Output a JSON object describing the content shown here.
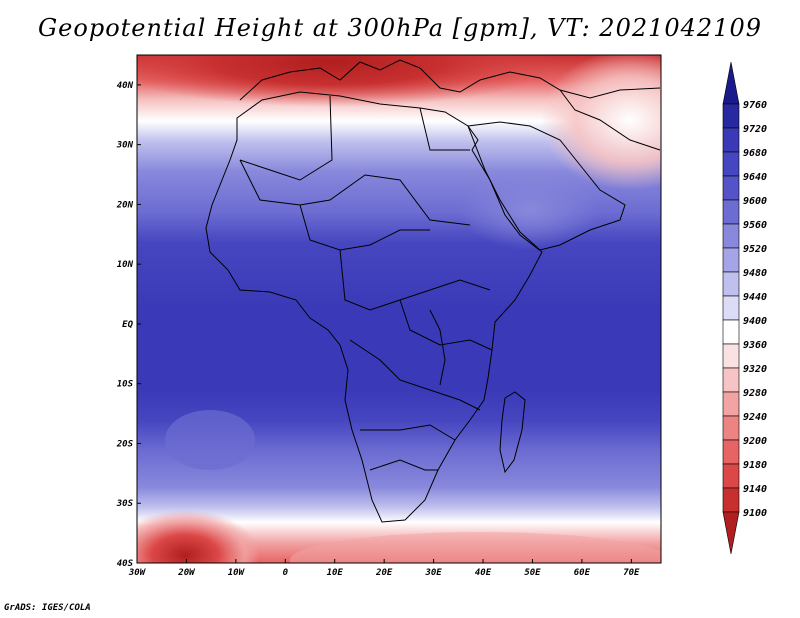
{
  "title": "Geopotential Height at 300hPa [gpm], VT: 2021042109",
  "credit": "GrADS: IGES/COLA",
  "map": {
    "lon_range": [
      -30,
      76
    ],
    "lat_range": [
      -40,
      45
    ],
    "x_tick_labels": [
      {
        "lon": -30,
        "label": "30W"
      },
      {
        "lon": -20,
        "label": "20W"
      },
      {
        "lon": -10,
        "label": "10W"
      },
      {
        "lon": 0,
        "label": "0"
      },
      {
        "lon": 10,
        "label": "10E"
      },
      {
        "lon": 20,
        "label": "20E"
      },
      {
        "lon": 30,
        "label": "30E"
      },
      {
        "lon": 40,
        "label": "40E"
      },
      {
        "lon": 50,
        "label": "50E"
      },
      {
        "lon": 60,
        "label": "60E"
      },
      {
        "lon": 70,
        "label": "70E"
      }
    ],
    "y_tick_labels": [
      {
        "lat": 40,
        "label": "40N"
      },
      {
        "lat": 30,
        "label": "30N"
      },
      {
        "lat": 20,
        "label": "20N"
      },
      {
        "lat": 10,
        "label": "10N"
      },
      {
        "lat": 0,
        "label": "EQ"
      },
      {
        "lat": -10,
        "label": "10S"
      },
      {
        "lat": -20,
        "label": "20S"
      },
      {
        "lat": -30,
        "label": "30S"
      },
      {
        "lat": -40,
        "label": "40S"
      }
    ]
  },
  "colorbar": {
    "levels": [
      9100,
      9140,
      9180,
      9200,
      9240,
      9280,
      9320,
      9360,
      9400,
      9440,
      9480,
      9520,
      9560,
      9600,
      9640,
      9680,
      9720,
      9760
    ],
    "colors": [
      "#b01e1e",
      "#c83030",
      "#dc4848",
      "#e66464",
      "#ec8484",
      "#f2a4a4",
      "#f6c4c4",
      "#fae2e2",
      "#ffffff",
      "#dcdcf6",
      "#c0c0ee",
      "#a4a4e6",
      "#8888dc",
      "#6c6cd2",
      "#5454c8",
      "#4646c0",
      "#3a3ab8",
      "#2828a0",
      "#1a1a8c"
    ]
  }
}
